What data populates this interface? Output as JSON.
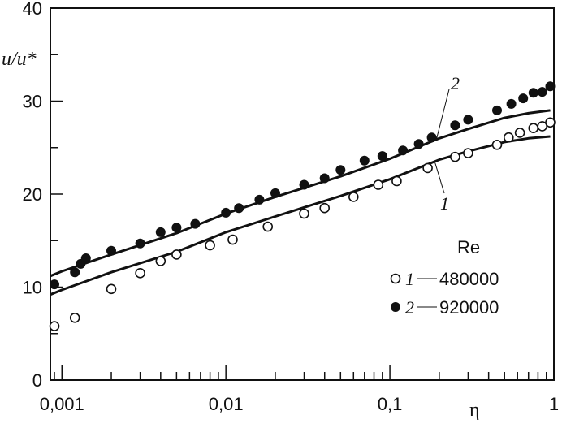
{
  "chart_data": {
    "type": "scatter",
    "xscale": "log",
    "xlim": [
      0.00085,
      1
    ],
    "ylim": [
      0,
      40
    ],
    "xlabel": "η",
    "ylabel": "u/u*",
    "grid": false,
    "legend_position": "bottom-right",
    "legend_title": "Re",
    "x_tick_labels": [
      "0,001",
      "0,01",
      "0,1",
      "1"
    ],
    "y_tick_labels": [
      "0",
      "10",
      "20",
      "30",
      "40"
    ],
    "series": [
      {
        "legend_number": "1",
        "legend_value": "480000",
        "marker": "open-circle",
        "points": [
          [
            0.0009,
            5.8
          ],
          [
            0.0012,
            6.7
          ],
          [
            0.002,
            9.8
          ],
          [
            0.003,
            11.5
          ],
          [
            0.004,
            12.8
          ],
          [
            0.005,
            13.5
          ],
          [
            0.008,
            14.5
          ],
          [
            0.011,
            15.1
          ],
          [
            0.018,
            16.5
          ],
          [
            0.03,
            17.9
          ],
          [
            0.04,
            18.5
          ],
          [
            0.06,
            19.7
          ],
          [
            0.085,
            21.0
          ],
          [
            0.11,
            21.4
          ],
          [
            0.17,
            22.8
          ],
          [
            0.25,
            24.0
          ],
          [
            0.3,
            24.4
          ],
          [
            0.45,
            25.3
          ],
          [
            0.53,
            26.1
          ],
          [
            0.62,
            26.6
          ],
          [
            0.75,
            27.1
          ],
          [
            0.85,
            27.3
          ],
          [
            0.95,
            27.7
          ]
        ]
      },
      {
        "legend_number": "2",
        "legend_value": "920000",
        "marker": "filled-circle",
        "points": [
          [
            0.0009,
            10.3
          ],
          [
            0.0012,
            11.6
          ],
          [
            0.0013,
            12.5
          ],
          [
            0.0014,
            13.1
          ],
          [
            0.002,
            13.9
          ],
          [
            0.003,
            14.7
          ],
          [
            0.004,
            15.9
          ],
          [
            0.005,
            16.4
          ],
          [
            0.0065,
            16.8
          ],
          [
            0.01,
            18.0
          ],
          [
            0.012,
            18.5
          ],
          [
            0.016,
            19.4
          ],
          [
            0.02,
            20.1
          ],
          [
            0.03,
            21.0
          ],
          [
            0.04,
            21.7
          ],
          [
            0.05,
            22.6
          ],
          [
            0.07,
            23.6
          ],
          [
            0.09,
            24.1
          ],
          [
            0.12,
            24.7
          ],
          [
            0.15,
            25.4
          ],
          [
            0.18,
            26.1
          ],
          [
            0.25,
            27.4
          ],
          [
            0.3,
            28.0
          ],
          [
            0.45,
            29.0
          ],
          [
            0.55,
            29.7
          ],
          [
            0.65,
            30.3
          ],
          [
            0.75,
            30.9
          ],
          [
            0.85,
            31.0
          ],
          [
            0.95,
            31.6
          ]
        ]
      }
    ],
    "curves": [
      {
        "label": "1",
        "points": [
          [
            0.00085,
            9.2
          ],
          [
            0.001,
            9.7
          ],
          [
            0.002,
            11.6
          ],
          [
            0.005,
            13.8
          ],
          [
            0.01,
            15.9
          ],
          [
            0.02,
            17.6
          ],
          [
            0.05,
            19.8
          ],
          [
            0.1,
            21.6
          ],
          [
            0.2,
            23.7
          ],
          [
            0.3,
            24.6
          ],
          [
            0.5,
            25.6
          ],
          [
            0.7,
            26.0
          ],
          [
            0.95,
            26.2
          ]
        ]
      },
      {
        "label": "2",
        "points": [
          [
            0.00085,
            11.2
          ],
          [
            0.001,
            11.7
          ],
          [
            0.002,
            13.5
          ],
          [
            0.005,
            15.8
          ],
          [
            0.01,
            17.9
          ],
          [
            0.02,
            19.7
          ],
          [
            0.05,
            21.9
          ],
          [
            0.1,
            23.8
          ],
          [
            0.2,
            26.0
          ],
          [
            0.3,
            27.0
          ],
          [
            0.5,
            28.2
          ],
          [
            0.7,
            28.7
          ],
          [
            0.95,
            29.0
          ]
        ]
      }
    ]
  }
}
